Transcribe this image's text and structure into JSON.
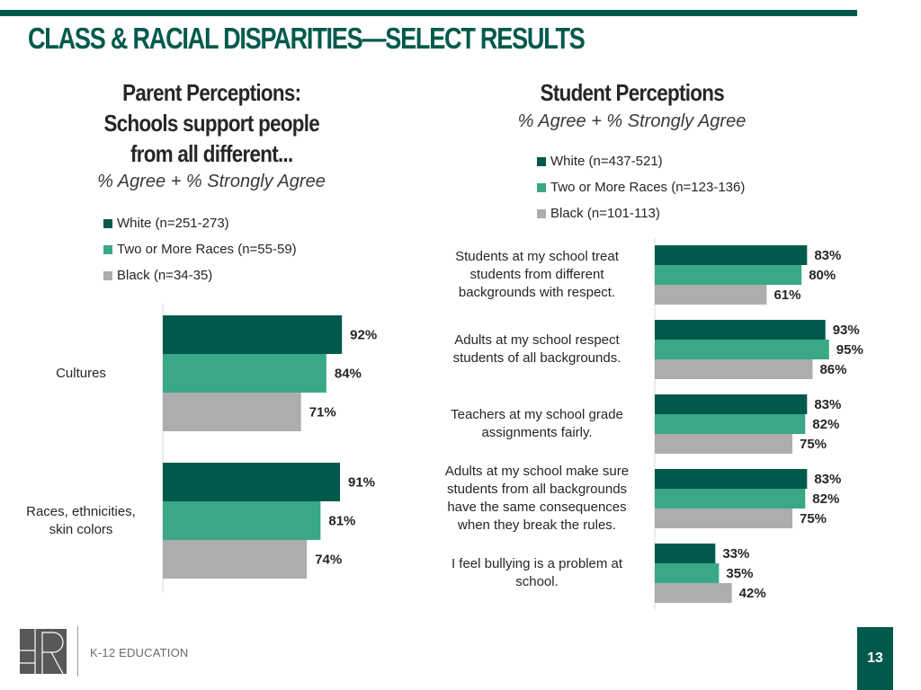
{
  "page": {
    "title": "CLASS & RACIAL DISPARITIES—SELECT RESULTS",
    "footer_text": "K-12 EDUCATION",
    "logo_text": "HR",
    "page_number": "13"
  },
  "colors": {
    "brand": "#005a4c",
    "white_series": "#005a4c",
    "two_or_more_series": "#3aa886",
    "black_series": "#adadad"
  },
  "chart_data": [
    {
      "type": "bar",
      "orientation": "horizontal",
      "title": "Parent Perceptions: Schools support people from all different...",
      "title_lines": [
        "Parent Perceptions:",
        "Schools support people",
        "from all different..."
      ],
      "subtitle": "% Agree + % Strongly Agree",
      "legend_position": "top",
      "categories": [
        "Cultures",
        "Races, ethnicities, skin colors"
      ],
      "category_lines": [
        [
          "Cultures"
        ],
        [
          "Races, ethnicities,",
          "skin colors"
        ]
      ],
      "series": [
        {
          "name": "White (n=251-273)",
          "values": [
            92,
            91
          ]
        },
        {
          "name": "Two or More Races (n=55-59)",
          "values": [
            84,
            81
          ]
        },
        {
          "name": "Black (n=34-35)",
          "values": [
            71,
            74
          ]
        }
      ],
      "value_format": "percent",
      "xlim": [
        0,
        100
      ],
      "grid": false
    },
    {
      "type": "bar",
      "orientation": "horizontal",
      "title": "Student Perceptions",
      "title_lines": [
        "Student Perceptions"
      ],
      "subtitle": "% Agree + % Strongly Agree",
      "legend_position": "top",
      "categories": [
        "Students at my school treat students from different backgrounds with respect.",
        "Adults at my school respect students of all backgrounds.",
        "Teachers at my school grade assignments fairly.",
        "Adults at my school make sure students from all backgrounds have the same consequences when they break the rules.",
        "I feel bullying is a problem at school."
      ],
      "category_lines": [
        [
          "Students at my school treat",
          "students from different",
          "backgrounds with respect."
        ],
        [
          "Adults at my school respect",
          "students of all backgrounds."
        ],
        [
          "Teachers at my school grade",
          "assignments fairly."
        ],
        [
          "Adults at my school make sure",
          "students from all backgrounds",
          "have the same consequences",
          "when they break the rules."
        ],
        [
          "I feel bullying is a problem at",
          "school."
        ]
      ],
      "series": [
        {
          "name": "White (n=437-521)",
          "values": [
            83,
            93,
            83,
            83,
            33
          ]
        },
        {
          "name": "Two or More Races (n=123-136)",
          "values": [
            80,
            95,
            82,
            82,
            35
          ]
        },
        {
          "name": "Black (n=101-113)",
          "values": [
            61,
            86,
            75,
            75,
            42
          ]
        }
      ],
      "value_format": "percent",
      "xlim": [
        0,
        100
      ],
      "grid": false
    }
  ]
}
